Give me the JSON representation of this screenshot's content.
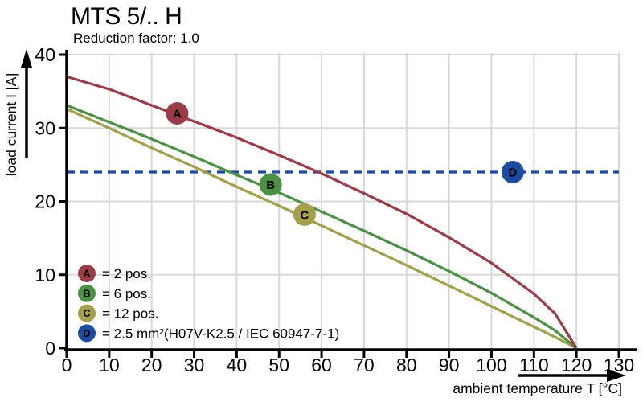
{
  "header": {
    "title": "MTS 5/.. H",
    "subtitle": "Reduction factor: 1.0"
  },
  "chart_data": {
    "type": "line",
    "title": "MTS 5/.. H",
    "subtitle": "Reduction factor: 1.0",
    "xlabel": "ambient temperature T [°C]",
    "ylabel": "load current I [A]",
    "xlim": [
      0,
      130
    ],
    "ylim": [
      0,
      40
    ],
    "x_ticks": [
      0,
      10,
      20,
      30,
      40,
      50,
      60,
      70,
      80,
      90,
      100,
      110,
      120,
      130
    ],
    "y_ticks": [
      0,
      10,
      20,
      30,
      40
    ],
    "grid": true,
    "grid_color": "#d8d8d8",
    "axis_color": "#000000",
    "legend_position": "inside-bottom-left",
    "series": [
      {
        "id": "A",
        "legend_label": "= 2 pos.",
        "color": "#9c3c46",
        "line_style": "solid",
        "x": [
          0,
          10,
          20,
          30,
          40,
          50,
          60,
          70,
          80,
          90,
          100,
          110,
          115,
          120
        ],
        "y": [
          37,
          35.3,
          33.1,
          30.9,
          28.7,
          26.3,
          23.8,
          21.1,
          18.3,
          15.1,
          11.6,
          7.4,
          4.7,
          0
        ],
        "marker": {
          "letter": "A",
          "x": 26,
          "y": 32
        }
      },
      {
        "id": "B",
        "legend_label": "= 6 pos.",
        "color": "#4a9144",
        "line_style": "solid",
        "x": [
          0,
          10,
          20,
          30,
          40,
          50,
          60,
          70,
          80,
          90,
          100,
          110,
          115,
          120
        ],
        "y": [
          33.1,
          30.8,
          28.5,
          26.1,
          23.6,
          21.2,
          18.6,
          16,
          13.3,
          10.5,
          7.5,
          4.2,
          2.4,
          0
        ],
        "marker": {
          "letter": "B",
          "x": 48,
          "y": 22.3
        }
      },
      {
        "id": "C",
        "legend_label": "= 12 pos.",
        "color": "#a49f4a",
        "line_style": "solid",
        "x": [
          0,
          10,
          20,
          30,
          40,
          50,
          60,
          70,
          80,
          90,
          100,
          110,
          115,
          120
        ],
        "y": [
          32.6,
          30,
          27.3,
          24.7,
          22,
          19.4,
          16.7,
          14,
          11.3,
          8.5,
          5.7,
          2.9,
          1.5,
          0
        ],
        "marker": {
          "letter": "C",
          "x": 56,
          "y": 18.2
        }
      },
      {
        "id": "D",
        "legend_label": "= 2.5 mm²(H07V-K2.5 / IEC 60947-7-1)",
        "color": "#1c4ca2",
        "line_style": "dashed",
        "x": [
          0,
          130
        ],
        "y": [
          24,
          24
        ],
        "marker": {
          "letter": "D",
          "x": 105,
          "y": 24
        }
      }
    ]
  }
}
